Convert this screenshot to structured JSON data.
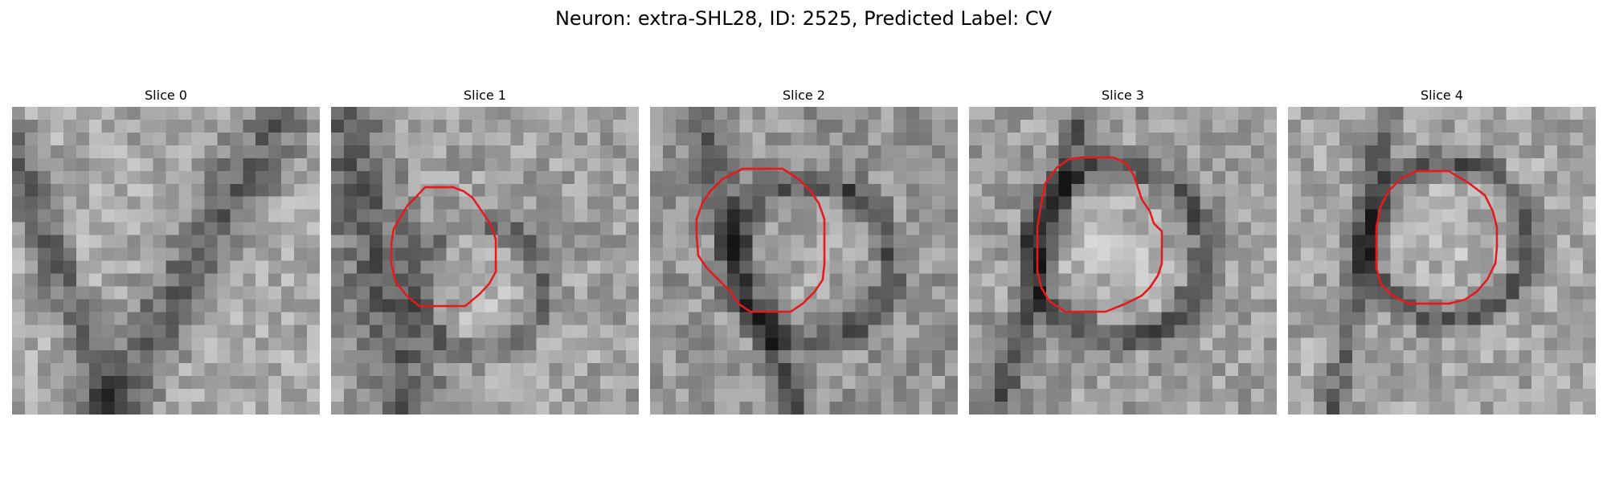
{
  "figure": {
    "title": "Neuron: extra-SHL28, ID: 2525, Predicted Label: CV",
    "contour_color": "#e41a1c"
  },
  "slices": [
    {
      "title": "Slice 0",
      "has_contour": false
    },
    {
      "title": "Slice 1",
      "has_contour": true
    },
    {
      "title": "Slice 2",
      "has_contour": true
    },
    {
      "title": "Slice 3",
      "has_contour": true
    },
    {
      "title": "Slice 4",
      "has_contour": true
    }
  ]
}
